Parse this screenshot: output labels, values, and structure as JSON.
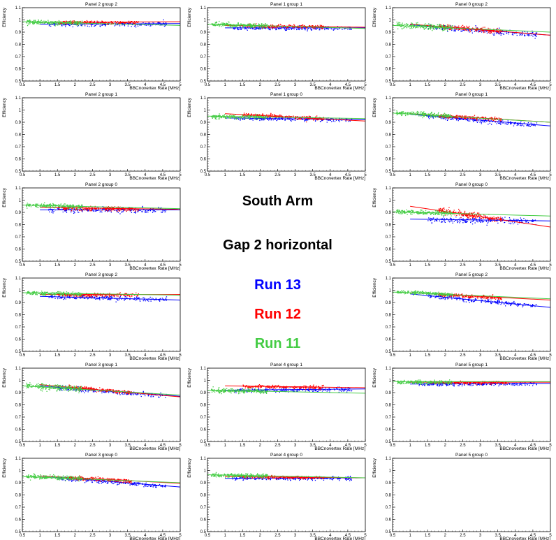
{
  "legend": {
    "arm": "South Arm",
    "gap": "Gap 2 horizontal",
    "runs": [
      {
        "label": "Run 13",
        "color": "#0000ff"
      },
      {
        "label": "Run 12",
        "color": "#ff0000"
      },
      {
        "label": "Run 11",
        "color": "#44cc44"
      }
    ]
  },
  "chart_data": [
    {
      "type": "scatter",
      "row": 0,
      "col": 0,
      "title": "Panel 2 group 2",
      "xlabel": "BBCnovertex Rate [MHz]",
      "ylabel": "Efficiency",
      "xlim": [
        0.5,
        5
      ],
      "ylim": [
        0.5,
        1.1
      ],
      "series": [
        {
          "run": "Run 13",
          "fit": [
            [
              1,
              0.965
            ],
            [
              5,
              0.97
            ]
          ],
          "cloud": [
            1.2,
            4.6,
            0.97,
            0.015
          ]
        },
        {
          "run": "Run 12",
          "fit": [
            [
              1,
              0.98
            ],
            [
              5,
              0.985
            ]
          ],
          "cloud": [
            1.5,
            3.8,
            0.985,
            0.012
          ]
        },
        {
          "run": "Run 11",
          "fit": [
            [
              0.5,
              0.985
            ],
            [
              5,
              0.955
            ]
          ],
          "cloud": [
            0.6,
            2.2,
            0.98,
            0.015
          ]
        }
      ]
    },
    {
      "type": "scatter",
      "row": 0,
      "col": 1,
      "title": "Panel 1 group 1",
      "xlabel": "BBCnovertex Rate [MHz]",
      "ylabel": "Efficiency",
      "xlim": [
        0.5,
        5
      ],
      "ylim": [
        0.5,
        1.1
      ],
      "series": [
        {
          "run": "Run 13",
          "fit": [
            [
              1,
              0.935
            ],
            [
              5,
              0.935
            ]
          ],
          "cloud": [
            1.2,
            4.6,
            0.935,
            0.015
          ]
        },
        {
          "run": "Run 12",
          "fit": [
            [
              1,
              0.955
            ],
            [
              5,
              0.94
            ]
          ],
          "cloud": [
            1.5,
            3.8,
            0.95,
            0.012
          ]
        },
        {
          "run": "Run 11",
          "fit": [
            [
              0.5,
              0.965
            ],
            [
              5,
              0.93
            ]
          ],
          "cloud": [
            0.6,
            2.2,
            0.955,
            0.015
          ]
        }
      ]
    },
    {
      "type": "scatter",
      "row": 0,
      "col": 2,
      "title": "Panel 0 group 2",
      "xlabel": "BBCnovertex Rate [MHz]",
      "ylabel": "Efficiency",
      "xlim": [
        0.5,
        5
      ],
      "ylim": [
        0.5,
        1.1
      ],
      "series": [
        {
          "run": "Run 13",
          "fit": [
            [
              1,
              0.96
            ],
            [
              5,
              0.875
            ]
          ],
          "cloud": [
            1.5,
            4.6,
            0.91,
            0.02
          ]
        },
        {
          "run": "Run 12",
          "fit": [
            [
              1,
              0.965
            ],
            [
              5,
              0.875
            ]
          ],
          "cloud": [
            1.8,
            3.6,
            0.93,
            0.015
          ]
        },
        {
          "run": "Run 11",
          "fit": [
            [
              0.5,
              0.955
            ],
            [
              5,
              0.9
            ]
          ],
          "cloud": [
            0.6,
            2.2,
            0.945,
            0.02
          ]
        }
      ]
    },
    {
      "type": "scatter",
      "row": 1,
      "col": 0,
      "title": "Panel 2 group 1",
      "xlabel": "BBCnovertex Rate [MHz]",
      "ylabel": "Efficiency",
      "xlim": [
        0.5,
        5
      ],
      "ylim": [
        0.5,
        1.1
      ],
      "series": []
    },
    {
      "type": "scatter",
      "row": 1,
      "col": 1,
      "title": "Panel 1 group 0",
      "xlabel": "BBCnovertex Rate [MHz]",
      "ylabel": "Efficiency",
      "xlim": [
        0.5,
        5
      ],
      "ylim": [
        0.5,
        1.1
      ],
      "series": [
        {
          "run": "Run 13",
          "fit": [
            [
              1,
              0.935
            ],
            [
              5,
              0.92
            ]
          ],
          "cloud": [
            1.2,
            4.6,
            0.935,
            0.015
          ]
        },
        {
          "run": "Run 12",
          "fit": [
            [
              1,
              0.97
            ],
            [
              5,
              0.91
            ]
          ],
          "cloud": [
            1.5,
            3.8,
            0.95,
            0.012
          ]
        },
        {
          "run": "Run 11",
          "fit": [
            [
              0.5,
              0.95
            ],
            [
              5,
              0.93
            ]
          ],
          "cloud": [
            0.6,
            2.2,
            0.945,
            0.015
          ]
        }
      ]
    },
    {
      "type": "scatter",
      "row": 1,
      "col": 2,
      "title": "Panel 0 group 1",
      "xlabel": "BBCnovertex Rate [MHz]",
      "ylabel": "Efficiency",
      "xlim": [
        0.5,
        5
      ],
      "ylim": [
        0.5,
        1.1
      ],
      "series": [
        {
          "run": "Run 13",
          "fit": [
            [
              1,
              0.965
            ],
            [
              5,
              0.87
            ]
          ],
          "cloud": [
            1.5,
            4.6,
            0.915,
            0.015
          ]
        },
        {
          "run": "Run 12",
          "fit": [
            [
              1,
              0.97
            ],
            [
              5,
              0.9
            ]
          ],
          "cloud": [
            1.8,
            3.6,
            0.94,
            0.012
          ]
        },
        {
          "run": "Run 11",
          "fit": [
            [
              0.5,
              0.975
            ],
            [
              5,
              0.9
            ]
          ],
          "cloud": [
            0.6,
            2.2,
            0.96,
            0.015
          ]
        }
      ]
    },
    {
      "type": "scatter",
      "row": 2,
      "col": 0,
      "title": "Panel 2 group 0",
      "xlabel": "BBCnovertex Rate [MHz]",
      "ylabel": "Efficiency",
      "xlim": [
        0.5,
        5
      ],
      "ylim": [
        0.5,
        1.1
      ],
      "series": [
        {
          "run": "Run 13",
          "fit": [
            [
              1,
              0.92
            ],
            [
              5,
              0.92
            ]
          ],
          "cloud": [
            1.2,
            4.6,
            0.925,
            0.02
          ]
        },
        {
          "run": "Run 12",
          "fit": [
            [
              1,
              0.94
            ],
            [
              5,
              0.925
            ]
          ],
          "cloud": [
            1.5,
            3.8,
            0.935,
            0.015
          ]
        },
        {
          "run": "Run 11",
          "fit": [
            [
              0.5,
              0.96
            ],
            [
              5,
              0.93
            ]
          ],
          "cloud": [
            0.6,
            2.2,
            0.955,
            0.015
          ]
        }
      ]
    },
    {
      "type": "scatter",
      "row": 2,
      "col": 2,
      "title": "Panel 0 group 0",
      "xlabel": "BBCnovertex Rate [MHz]",
      "ylabel": "Efficiency",
      "xlim": [
        0.5,
        5
      ],
      "ylim": [
        0.5,
        1.1
      ],
      "series": [
        {
          "run": "Run 13",
          "fit": [
            [
              1,
              0.845
            ],
            [
              5,
              0.83
            ]
          ],
          "cloud": [
            1.5,
            4.6,
            0.84,
            0.02
          ]
        },
        {
          "run": "Run 12",
          "fit": [
            [
              1,
              0.95
            ],
            [
              5,
              0.78
            ]
          ],
          "cloud": [
            1.8,
            3.6,
            0.88,
            0.02
          ]
        },
        {
          "run": "Run 11",
          "fit": [
            [
              0.5,
              0.905
            ],
            [
              5,
              0.87
            ]
          ],
          "cloud": [
            0.6,
            2.2,
            0.9,
            0.015
          ]
        }
      ]
    },
    {
      "type": "scatter",
      "row": 3,
      "col": 0,
      "title": "Panel 3 group 2",
      "xlabel": "BBCnovertex Rate [MHz]",
      "ylabel": "Efficiency",
      "xlim": [
        0.5,
        5
      ],
      "ylim": [
        0.5,
        1.1
      ],
      "series": [
        {
          "run": "Run 13",
          "fit": [
            [
              1,
              0.95
            ],
            [
              5,
              0.92
            ]
          ],
          "cloud": [
            1.2,
            4.6,
            0.95,
            0.015
          ]
        },
        {
          "run": "Run 12",
          "fit": [
            [
              1,
              0.965
            ],
            [
              5,
              0.965
            ]
          ],
          "cloud": [
            1.5,
            3.8,
            0.965,
            0.012
          ]
        },
        {
          "run": "Run 11",
          "fit": [
            [
              0.5,
              0.98
            ],
            [
              5,
              0.96
            ]
          ],
          "cloud": [
            0.6,
            2.2,
            0.975,
            0.012
          ]
        }
      ]
    },
    {
      "type": "scatter",
      "row": 3,
      "col": 2,
      "title": "Panel 5 group 2",
      "xlabel": "BBCnovertex Rate [MHz]",
      "ylabel": "Efficiency",
      "xlim": [
        0.5,
        5
      ],
      "ylim": [
        0.5,
        1.1
      ],
      "series": [
        {
          "run": "Run 13",
          "fit": [
            [
              1,
              0.97
            ],
            [
              5,
              0.86
            ]
          ],
          "cloud": [
            1.5,
            4.6,
            0.93,
            0.015
          ]
        },
        {
          "run": "Run 12",
          "fit": [
            [
              1,
              0.98
            ],
            [
              5,
              0.92
            ]
          ],
          "cloud": [
            1.8,
            3.6,
            0.95,
            0.012
          ]
        },
        {
          "run": "Run 11",
          "fit": [
            [
              0.5,
              0.985
            ],
            [
              5,
              0.93
            ]
          ],
          "cloud": [
            0.6,
            2.2,
            0.975,
            0.012
          ]
        }
      ]
    },
    {
      "type": "scatter",
      "row": 4,
      "col": 0,
      "title": "Panel 3 group 1",
      "xlabel": "BBCnovertex Rate [MHz]",
      "ylabel": "Efficiency",
      "xlim": [
        0.5,
        5
      ],
      "ylim": [
        0.5,
        1.1
      ],
      "series": [
        {
          "run": "Run 13",
          "fit": [
            [
              1,
              0.955
            ],
            [
              5,
              0.87
            ]
          ],
          "cloud": [
            1.5,
            4.6,
            0.905,
            0.015
          ]
        },
        {
          "run": "Run 12",
          "fit": [
            [
              1,
              0.965
            ],
            [
              5,
              0.865
            ]
          ],
          "cloud": [
            1.8,
            3.6,
            0.925,
            0.012
          ]
        },
        {
          "run": "Run 11",
          "fit": [
            [
              0.5,
              0.955
            ],
            [
              5,
              0.88
            ]
          ],
          "cloud": [
            0.6,
            2.2,
            0.935,
            0.02
          ]
        }
      ]
    },
    {
      "type": "scatter",
      "row": 4,
      "col": 1,
      "title": "Panel 4 group 1",
      "xlabel": "BBCnovertex Rate [MHz]",
      "ylabel": "Efficiency",
      "xlim": [
        0.5,
        5
      ],
      "ylim": [
        0.5,
        1.1
      ],
      "series": [
        {
          "run": "Run 13",
          "fit": [
            [
              1,
              0.92
            ],
            [
              5,
              0.93
            ]
          ],
          "cloud": [
            1.2,
            4.6,
            0.925,
            0.015
          ]
        },
        {
          "run": "Run 12",
          "fit": [
            [
              1,
              0.955
            ],
            [
              5,
              0.94
            ]
          ],
          "cloud": [
            1.5,
            3.8,
            0.95,
            0.012
          ]
        },
        {
          "run": "Run 11",
          "fit": [
            [
              0.5,
              0.92
            ],
            [
              5,
              0.895
            ]
          ],
          "cloud": [
            0.6,
            2.2,
            0.915,
            0.015
          ]
        }
      ]
    },
    {
      "type": "scatter",
      "row": 4,
      "col": 2,
      "title": "Panel 5 group 1",
      "xlabel": "BBCnovertex Rate [MHz]",
      "ylabel": "Efficiency",
      "xlim": [
        0.5,
        5
      ],
      "ylim": [
        0.5,
        1.1
      ],
      "series": [
        {
          "run": "Run 13",
          "fit": [
            [
              1,
              0.97
            ],
            [
              5,
              0.975
            ]
          ],
          "cloud": [
            1.2,
            4.6,
            0.975,
            0.012
          ]
        },
        {
          "run": "Run 12",
          "fit": [
            [
              1,
              0.985
            ],
            [
              5,
              0.985
            ]
          ],
          "cloud": [
            1.5,
            3.8,
            0.985,
            0.01
          ]
        },
        {
          "run": "Run 11",
          "fit": [
            [
              0.5,
              0.99
            ],
            [
              5,
              0.99
            ]
          ],
          "cloud": [
            0.6,
            2.2,
            0.985,
            0.012
          ]
        }
      ]
    },
    {
      "type": "scatter",
      "row": 5,
      "col": 0,
      "title": "Panel 3 group 0",
      "xlabel": "BBCnovertex Rate [MHz]",
      "ylabel": "Efficiency",
      "xlim": [
        0.5,
        5
      ],
      "ylim": [
        0.5,
        1.1
      ],
      "series": [
        {
          "run": "Run 13",
          "fit": [
            [
              1,
              0.955
            ],
            [
              5,
              0.865
            ]
          ],
          "cloud": [
            1.5,
            4.6,
            0.905,
            0.015
          ]
        },
        {
          "run": "Run 12",
          "fit": [
            [
              1,
              0.955
            ],
            [
              5,
              0.895
            ]
          ],
          "cloud": [
            1.8,
            3.6,
            0.93,
            0.012
          ]
        },
        {
          "run": "Run 11",
          "fit": [
            [
              0.5,
              0.95
            ],
            [
              5,
              0.9
            ]
          ],
          "cloud": [
            0.6,
            2.2,
            0.945,
            0.015
          ]
        }
      ]
    },
    {
      "type": "scatter",
      "row": 5,
      "col": 1,
      "title": "Panel 4 group 0",
      "xlabel": "BBCnovertex Rate [MHz]",
      "ylabel": "Efficiency",
      "xlim": [
        0.5,
        5
      ],
      "ylim": [
        0.5,
        1.1
      ],
      "series": [
        {
          "run": "Run 13",
          "fit": [
            [
              1,
              0.935
            ],
            [
              5,
              0.94
            ]
          ],
          "cloud": [
            1.2,
            4.6,
            0.94,
            0.012
          ]
        },
        {
          "run": "Run 12",
          "fit": [
            [
              1,
              0.95
            ],
            [
              5,
              0.94
            ]
          ],
          "cloud": [
            1.5,
            3.8,
            0.95,
            0.01
          ]
        },
        {
          "run": "Run 11",
          "fit": [
            [
              0.5,
              0.965
            ],
            [
              5,
              0.94
            ]
          ],
          "cloud": [
            0.6,
            2.2,
            0.955,
            0.012
          ]
        }
      ]
    },
    {
      "type": "scatter",
      "row": 5,
      "col": 2,
      "title": "Panel 5 group 0",
      "xlabel": "BBCnovertex Rate [MHz]",
      "ylabel": "Efficiency",
      "xlim": [
        0.5,
        5
      ],
      "ylim": [
        0.5,
        1.1
      ],
      "series": []
    }
  ]
}
